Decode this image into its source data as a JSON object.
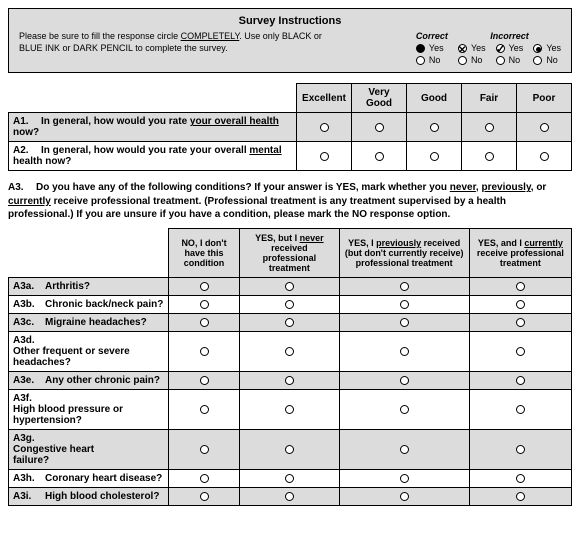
{
  "instructions": {
    "title": "Survey Instructions",
    "text_pre": "Please be sure to fill the response circle ",
    "text_underlined": "COMPLETELY",
    "text_post": ". Use only BLACK or BLUE INK or DARK PENCIL to complete the survey.",
    "correct_label": "Correct",
    "incorrect_label": "Incorrect",
    "yes": "Yes",
    "no": "No"
  },
  "table1": {
    "headers": [
      "Excellent",
      "Very Good",
      "Good",
      "Fair",
      "Poor"
    ],
    "rows": [
      {
        "id": "A1.",
        "pre": "In general, how would you rate ",
        "u": "your overall health",
        "post": " now?",
        "shade": true
      },
      {
        "id": "A2.",
        "pre": "In general, how would you rate your overall ",
        "u": "mental",
        "post": " health now?",
        "shade": false
      }
    ]
  },
  "a3": {
    "id": "A3.",
    "seg1": "Do you have any of the following conditions?  If your answer is YES, mark whether you ",
    "u1": "never",
    "seg2": ", ",
    "u2": "previously",
    "seg3": ", or ",
    "u3": "currently",
    "seg4": " receive professional treatment.  (Professional treatment is any treatment supervised by a health professional.) If you are unsure if you have a condition, please mark the NO response option."
  },
  "table2": {
    "headers": [
      {
        "pre": "NO, I don't have this condition",
        "u": ""
      },
      {
        "pre": "YES, but I ",
        "u": "never",
        "post": " received professional treatment"
      },
      {
        "pre": "YES, I ",
        "u": "previously",
        "post": " received (but don't currently receive) professional treatment"
      },
      {
        "pre": "YES, and I ",
        "u": "currently",
        "post": " receive professional treatment"
      }
    ],
    "rows": [
      {
        "id": "A3a.",
        "label": "Arthritis?",
        "shade": true
      },
      {
        "id": "A3b.",
        "label": "Chronic back/neck pain?",
        "shade": false
      },
      {
        "id": "A3c.",
        "label": "Migraine headaches?",
        "shade": true
      },
      {
        "id": "A3d.",
        "label": "Other frequent or severe headaches?",
        "shade": false
      },
      {
        "id": "A3e.",
        "label": "Any other chronic pain?",
        "shade": true
      },
      {
        "id": "A3f.",
        "label": "High blood pressure or hypertension?",
        "shade": false
      },
      {
        "id": "A3g.",
        "label": "Congestive heart failure?",
        "shade": true
      },
      {
        "id": "A3h.",
        "label": "Coronary heart disease?",
        "shade": false
      },
      {
        "id": "A3i.",
        "label": "High blood cholesterol?",
        "shade": true
      }
    ]
  }
}
